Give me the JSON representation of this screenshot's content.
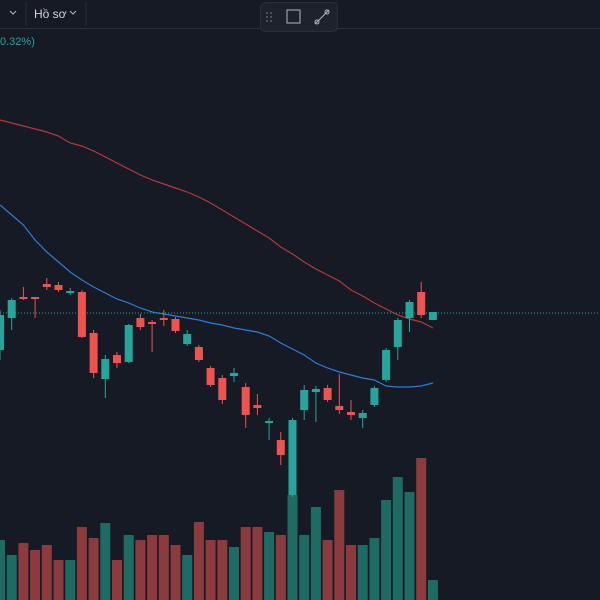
{
  "header": {
    "profile": "Hồ sơ",
    "change": "0.32%)"
  },
  "chart_data": {
    "type": "candlestick",
    "ylim": [
      0,
      600
    ],
    "y2lim": [
      0,
      600
    ],
    "up_color": "#26a69a",
    "down_color": "#ef5350",
    "volume_up_color": "#1e6b64",
    "volume_down_color": "#8b3a3d",
    "open": [
      250,
      282,
      303,
      303,
      316,
      315,
      307,
      308,
      267,
      221,
      245,
      238,
      282,
      278,
      282,
      281,
      256,
      253,
      232,
      222,
      224,
      213,
      195,
      177,
      160,
      105,
      190,
      208,
      212,
      194,
      188,
      182,
      195,
      220,
      253,
      282,
      308,
      280
    ],
    "high": [
      290,
      302,
      313,
      303,
      322,
      318,
      312,
      310,
      270,
      245,
      248,
      276,
      286,
      280,
      290,
      283,
      270,
      255,
      234,
      225,
      232,
      217,
      206,
      182,
      168,
      182,
      215,
      214,
      215,
      226,
      200,
      190,
      214,
      252,
      282,
      300,
      318,
      288
    ],
    "low": [
      240,
      270,
      300,
      282,
      310,
      308,
      305,
      262,
      222,
      202,
      232,
      237,
      270,
      248,
      274,
      267,
      254,
      238,
      213,
      196,
      218,
      172,
      185,
      160,
      135,
      103,
      180,
      178,
      198,
      186,
      180,
      172,
      193,
      218,
      240,
      268,
      282,
      280
    ],
    "close": [
      285,
      300,
      301,
      301,
      313,
      310,
      309,
      263,
      227,
      241,
      237,
      275,
      273,
      276,
      280,
      269,
      266,
      240,
      215,
      200,
      227,
      185,
      192,
      179,
      145,
      180,
      210,
      211,
      200,
      190,
      185,
      187,
      212,
      250,
      280,
      298,
      285,
      288
    ],
    "volume": [
      60,
      45,
      57,
      50,
      55,
      40,
      40,
      73,
      62,
      77,
      40,
      65,
      60,
      65,
      65,
      55,
      45,
      78,
      60,
      60,
      53,
      73,
      73,
      68,
      65,
      105,
      65,
      93,
      60,
      110,
      55,
      55,
      62,
      100,
      123,
      108,
      142,
      20
    ],
    "series": [
      {
        "color": "#2f7bd6",
        "values": [
          395,
          385,
          375,
          360,
          348,
          338,
          328,
          320,
          313,
          307,
          301,
          297,
          292,
          288,
          286,
          284,
          282,
          280,
          277,
          275,
          272,
          270,
          268,
          264,
          257,
          251,
          245,
          237,
          232,
          228,
          225,
          222,
          220,
          214,
          213,
          213,
          214,
          217
        ]
      },
      {
        "color": "#b23a3e",
        "values": [
          480,
          477,
          474,
          471,
          468,
          464,
          457,
          454,
          449,
          443,
          437,
          431,
          425,
          420,
          416,
          412,
          408,
          403,
          397,
          390,
          383,
          376,
          369,
          362,
          353,
          346,
          338,
          331,
          325,
          319,
          310,
          304,
          297,
          291,
          285,
          281,
          278,
          272
        ]
      }
    ],
    "price_line": 287
  }
}
